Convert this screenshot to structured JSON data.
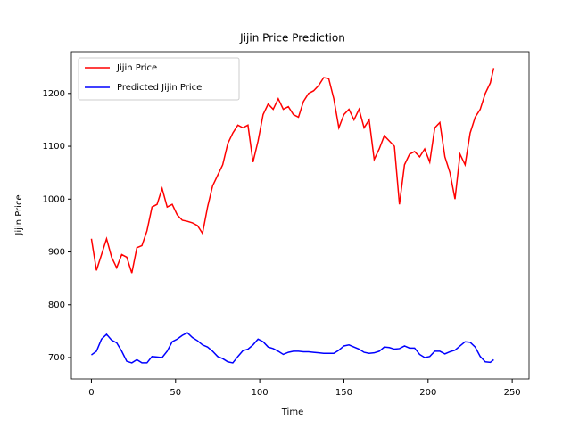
{
  "chart_data": {
    "type": "line",
    "title": "Jijin Price Prediction",
    "x_label": "Time",
    "y_label": "Jijin Price",
    "x": [
      0,
      3,
      6,
      9,
      12,
      15,
      18,
      21,
      24,
      27,
      30,
      33,
      36,
      39,
      42,
      45,
      48,
      51,
      54,
      57,
      60,
      63,
      66,
      69,
      72,
      75,
      78,
      81,
      84,
      87,
      90,
      93,
      96,
      99,
      102,
      105,
      108,
      111,
      114,
      117,
      120,
      123,
      126,
      129,
      132,
      135,
      138,
      141,
      144,
      147,
      150,
      153,
      156,
      159,
      162,
      165,
      168,
      171,
      174,
      177,
      180,
      183,
      186,
      189,
      192,
      195,
      198,
      201,
      204,
      207,
      210,
      213,
      216,
      219,
      222,
      225,
      228,
      231,
      234,
      237,
      239
    ],
    "series": [
      {
        "name": "Jijin Price",
        "color": "#ff0000",
        "values": [
          925,
          865,
          895,
          925,
          890,
          870,
          895,
          890,
          860,
          908,
          912,
          940,
          985,
          990,
          1020,
          985,
          990,
          970,
          960,
          958,
          955,
          950,
          935,
          985,
          1025,
          1045,
          1065,
          1105,
          1125,
          1140,
          1135,
          1140,
          1070,
          1110,
          1160,
          1180,
          1170,
          1190,
          1170,
          1175,
          1160,
          1155,
          1185,
          1200,
          1205,
          1215,
          1230,
          1228,
          1190,
          1135,
          1160,
          1170,
          1150,
          1170,
          1135,
          1150,
          1075,
          1095,
          1120,
          1110,
          1100,
          990,
          1065,
          1085,
          1090,
          1080,
          1095,
          1070,
          1135,
          1145,
          1080,
          1050,
          1000,
          1085,
          1065,
          1125,
          1155,
          1170,
          1200,
          1220,
          1248
        ]
      },
      {
        "name": "Predicted Jijin Price",
        "color": "#0000ff",
        "values": [
          705,
          712,
          735,
          744,
          733,
          728,
          712,
          693,
          690,
          696,
          690,
          690,
          702,
          701,
          700,
          712,
          730,
          735,
          742,
          747,
          738,
          732,
          724,
          720,
          712,
          702,
          698,
          692,
          690,
          702,
          713,
          716,
          724,
          735,
          730,
          720,
          717,
          712,
          706,
          710,
          712,
          712,
          711,
          711,
          710,
          709,
          708,
          708,
          708,
          714,
          722,
          724,
          720,
          716,
          710,
          708,
          709,
          712,
          720,
          719,
          716,
          717,
          722,
          718,
          718,
          706,
          700,
          702,
          712,
          712,
          707,
          711,
          714,
          722,
          730,
          729,
          720,
          702,
          692,
          691,
          696
        ]
      }
    ],
    "xlim": [
      -11.9,
      260
    ],
    "ylim": [
      659.5,
      1279
    ],
    "xticks": [
      0,
      50,
      100,
      150,
      200,
      250
    ],
    "yticks": [
      700,
      800,
      900,
      1000,
      1100,
      1200
    ],
    "legend": "upper left"
  }
}
